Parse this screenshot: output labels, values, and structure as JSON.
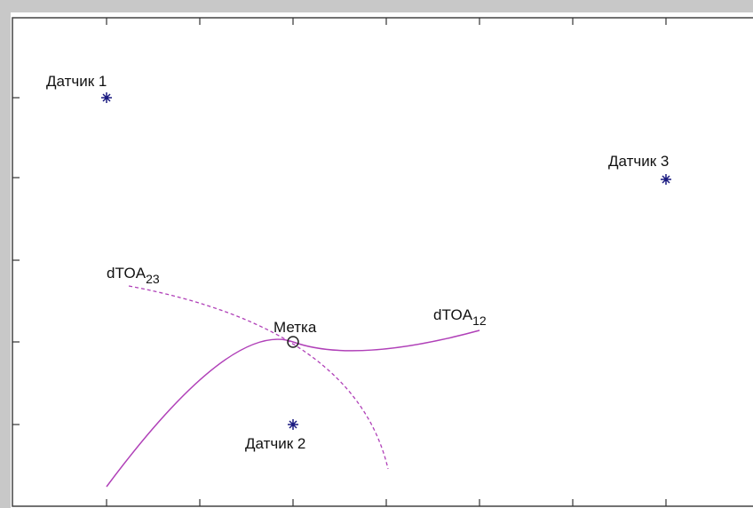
{
  "sensors": [
    {
      "label": "Датчик 1"
    },
    {
      "label": "Датчик 2"
    },
    {
      "label": "Датчик 3"
    }
  ],
  "tag": {
    "label": "Метка"
  },
  "curves": [
    {
      "label": "dTOA",
      "subscript": "23"
    },
    {
      "label": "dTOA",
      "subscript": "12"
    }
  ]
}
